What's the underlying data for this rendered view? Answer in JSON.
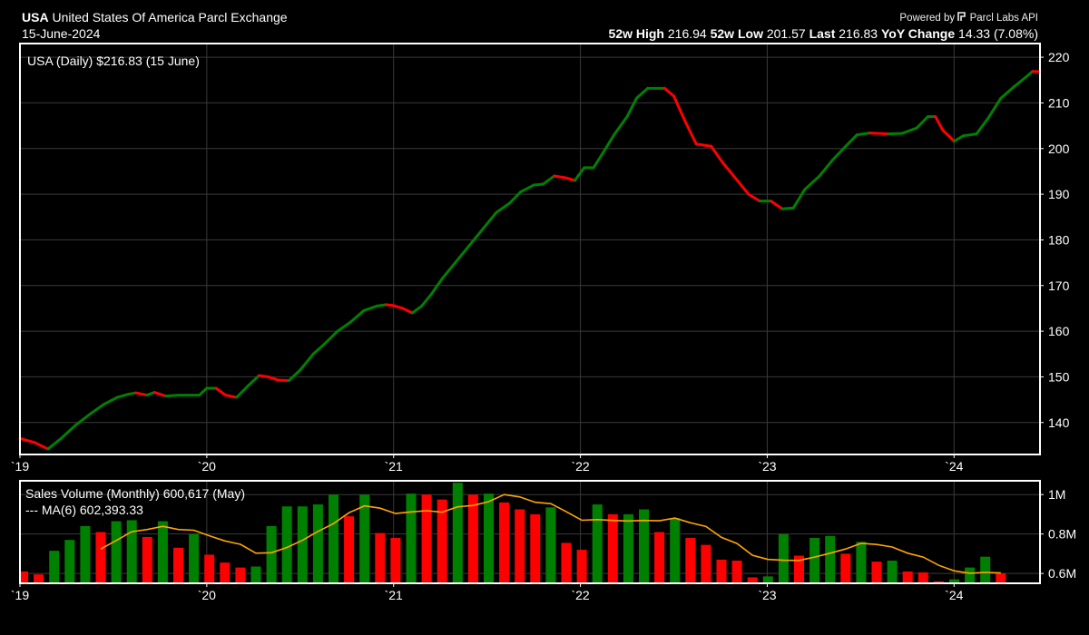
{
  "header": {
    "ticker": "USA",
    "name": "United States Of America Parcl Exchange",
    "date": "15-June-2024",
    "powered_by": "Powered by",
    "brand": "Parcl Labs API",
    "stats": [
      {
        "label": "52w High",
        "value": "216.94"
      },
      {
        "label": "52w Low",
        "value": "201.57"
      },
      {
        "label": "Last",
        "value": "216.83"
      },
      {
        "label": "YoY Change",
        "value": "14.33 (7.08%)"
      }
    ]
  },
  "colors": {
    "up": "#008000",
    "down": "#ff0000",
    "ma": "#ffa500",
    "grid": "#3a3a3a",
    "background": "#000000",
    "frame": "#ffffff"
  },
  "chart_data": [
    {
      "type": "line",
      "legend_label": "USA (Daily) $216.83 (15 June)",
      "ylim": [
        133,
        223
      ],
      "yticks": [
        140,
        150,
        160,
        170,
        180,
        190,
        200,
        210,
        220
      ],
      "x_range": [
        2019.0,
        2024.46
      ],
      "x_ticks": [
        {
          "value": 2019,
          "label": "`19"
        },
        {
          "value": 2020,
          "label": "`20"
        },
        {
          "value": 2021,
          "label": "`21"
        },
        {
          "value": 2022,
          "label": "`22"
        },
        {
          "value": 2023,
          "label": "`23"
        },
        {
          "value": 2024,
          "label": "`24"
        }
      ],
      "line_coloring": "green when rising, red when falling",
      "points": [
        [
          2019.0,
          136.5
        ],
        [
          2019.08,
          135.6
        ],
        [
          2019.15,
          134.2
        ],
        [
          2019.22,
          136.5
        ],
        [
          2019.3,
          139.5
        ],
        [
          2019.38,
          142.0
        ],
        [
          2019.45,
          144.0
        ],
        [
          2019.52,
          145.5
        ],
        [
          2019.58,
          146.2
        ],
        [
          2019.62,
          146.5
        ],
        [
          2019.68,
          146.0
        ],
        [
          2019.72,
          146.6
        ],
        [
          2019.78,
          145.8
        ],
        [
          2019.85,
          146.0
        ],
        [
          2019.92,
          146.0
        ],
        [
          2019.96,
          146.0
        ],
        [
          2020.0,
          147.5
        ],
        [
          2020.05,
          147.5
        ],
        [
          2020.1,
          146.0
        ],
        [
          2020.16,
          145.5
        ],
        [
          2020.22,
          148.0
        ],
        [
          2020.28,
          150.3
        ],
        [
          2020.33,
          150.0
        ],
        [
          2020.38,
          149.3
        ],
        [
          2020.44,
          149.2
        ],
        [
          2020.5,
          151.5
        ],
        [
          2020.57,
          155.0
        ],
        [
          2020.63,
          157.2
        ],
        [
          2020.7,
          160.0
        ],
        [
          2020.77,
          162.0
        ],
        [
          2020.84,
          164.5
        ],
        [
          2020.91,
          165.5
        ],
        [
          2020.96,
          165.8
        ],
        [
          2021.0,
          165.6
        ],
        [
          2021.05,
          165.0
        ],
        [
          2021.1,
          164.0
        ],
        [
          2021.15,
          165.5
        ],
        [
          2021.2,
          168.0
        ],
        [
          2021.26,
          171.5
        ],
        [
          2021.33,
          175.0
        ],
        [
          2021.4,
          178.5
        ],
        [
          2021.48,
          182.5
        ],
        [
          2021.55,
          186.0
        ],
        [
          2021.62,
          188.0
        ],
        [
          2021.68,
          190.5
        ],
        [
          2021.75,
          192.0
        ],
        [
          2021.8,
          192.2
        ],
        [
          2021.86,
          194.0
        ],
        [
          2021.92,
          193.6
        ],
        [
          2021.97,
          193.0
        ],
        [
          2022.02,
          195.8
        ],
        [
          2022.07,
          195.8
        ],
        [
          2022.12,
          199.0
        ],
        [
          2022.18,
          203.0
        ],
        [
          2022.25,
          207.0
        ],
        [
          2022.3,
          211.0
        ],
        [
          2022.36,
          213.2
        ],
        [
          2022.45,
          213.2
        ],
        [
          2022.5,
          211.5
        ],
        [
          2022.56,
          206.0
        ],
        [
          2022.62,
          201.0
        ],
        [
          2022.7,
          200.5
        ],
        [
          2022.76,
          197.0
        ],
        [
          2022.82,
          194.0
        ],
        [
          2022.9,
          190.0
        ],
        [
          2022.96,
          188.5
        ],
        [
          2023.02,
          188.5
        ],
        [
          2023.08,
          186.8
        ],
        [
          2023.14,
          187.0
        ],
        [
          2023.2,
          191.0
        ],
        [
          2023.28,
          194.0
        ],
        [
          2023.35,
          197.5
        ],
        [
          2023.42,
          200.5
        ],
        [
          2023.48,
          203.0
        ],
        [
          2023.55,
          203.4
        ],
        [
          2023.65,
          203.2
        ],
        [
          2023.72,
          203.3
        ],
        [
          2023.8,
          204.5
        ],
        [
          2023.86,
          207.0
        ],
        [
          2023.9,
          207.0
        ],
        [
          2023.94,
          204.0
        ],
        [
          2024.0,
          201.6
        ],
        [
          2024.05,
          202.8
        ],
        [
          2024.12,
          203.2
        ],
        [
          2024.18,
          206.5
        ],
        [
          2024.25,
          211.0
        ],
        [
          2024.32,
          213.5
        ],
        [
          2024.38,
          215.5
        ],
        [
          2024.42,
          216.9
        ],
        [
          2024.46,
          216.83
        ]
      ]
    },
    {
      "type": "bar",
      "legend_label": "Sales Volume (Monthly) 600,617 (May)",
      "ma_label": "--- MA(6) 602,393.33",
      "ylim": [
        550000,
        1070000
      ],
      "yticks": [
        {
          "value": 600000,
          "label": "0.6M"
        },
        {
          "value": 800000,
          "label": "0.8M"
        },
        {
          "value": 1000000,
          "label": "1M"
        }
      ],
      "x_ticks": [
        "`19",
        "`20",
        "`21",
        "`22",
        "`23",
        "`24"
      ],
      "months_start": "2019-01",
      "bar_coloring": "green when higher than previous month, red when lower",
      "values": [
        610000,
        595000,
        715000,
        770000,
        840000,
        810000,
        865000,
        870000,
        785000,
        865000,
        730000,
        800000,
        695000,
        655000,
        630000,
        635000,
        840000,
        940000,
        940000,
        950000,
        1000000,
        890000,
        1000000,
        805000,
        780000,
        1005000,
        1000000,
        975000,
        1060000,
        1000000,
        1005000,
        960000,
        925000,
        900000,
        935000,
        755000,
        720000,
        950000,
        900000,
        900000,
        925000,
        810000,
        880000,
        780000,
        745000,
        670000,
        665000,
        580000,
        585000,
        800000,
        690000,
        780000,
        790000,
        700000,
        760000,
        660000,
        665000,
        610000,
        605000,
        560000,
        570000,
        630000,
        685000,
        600617
      ],
      "ma6": [
        null,
        null,
        null,
        null,
        null,
        724000,
        767000,
        812000,
        823000,
        839000,
        823000,
        819000,
        791000,
        765000,
        748000,
        703000,
        705000,
        732000,
        768000,
        813000,
        853000,
        908000,
        943000,
        931000,
        904000,
        912000,
        918000,
        911000,
        938000,
        945000,
        964000,
        1000000,
        988000,
        961000,
        954000,
        913000,
        870000,
        873000,
        869000,
        866000,
        869000,
        867000,
        881000,
        857000,
        838000,
        783000,
        752000,
        692000,
        671000,
        667000,
        666000,
        683000,
        703000,
        724000,
        753000,
        747000,
        734000,
        703000,
        683000,
        641000,
        613000,
        601000,
        605000,
        602393
      ]
    }
  ]
}
